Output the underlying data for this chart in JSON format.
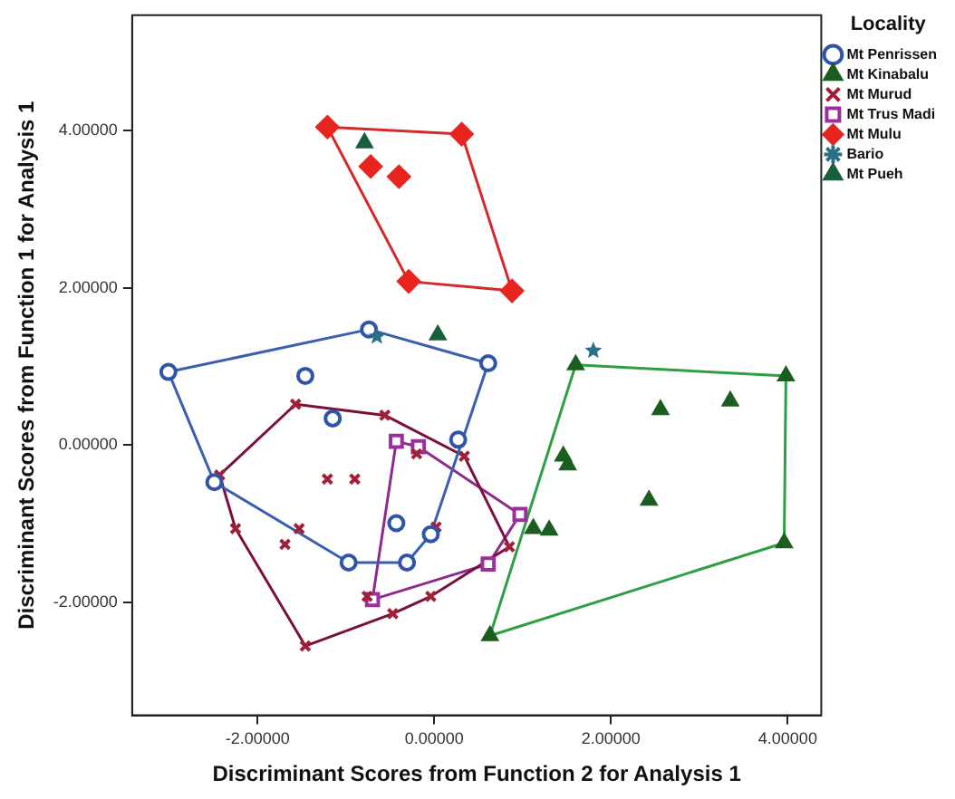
{
  "chart_data": {
    "type": "scatter",
    "xlabel": "Discriminant Scores from Function 2 for Analysis 1",
    "ylabel": "Discriminant Scores from Function 1 for Analysis 1",
    "legend_title": "Locality",
    "legend": "right",
    "grid": false,
    "xlim": [
      -3.42,
      4.38
    ],
    "xticks": [
      {
        "value": -2,
        "label": "-2.00000"
      },
      {
        "value": 0,
        "label": "0.00000"
      },
      {
        "value": 2,
        "label": "2.00000"
      },
      {
        "value": 4,
        "label": "4.00000"
      }
    ],
    "ylim": [
      -3.43,
      5.46
    ],
    "yticks": [
      {
        "value": -2,
        "label": "-2.00000"
      },
      {
        "value": 0,
        "label": "0.00000"
      },
      {
        "value": 2,
        "label": "2.00000"
      },
      {
        "value": 4,
        "label": "4.00000"
      }
    ],
    "series": [
      {
        "name": "Mt Penrissen",
        "color": "#2f55a8",
        "marker": "circle",
        "x": [
          -3.01,
          -0.74,
          0.61,
          -1.46,
          -1.15,
          -2.49,
          0.27,
          -0.43,
          -0.04,
          -0.97,
          -0.31
        ],
        "values": [
          0.93,
          1.47,
          1.04,
          0.88,
          0.34,
          -0.47,
          0.07,
          -0.99,
          -1.13,
          -1.49,
          -1.49
        ]
      },
      {
        "name": "Mt Kinabalu",
        "color": "#1b5e20",
        "marker": "triangle",
        "x": [
          1.6,
          3.98,
          2.56,
          3.35,
          1.46,
          1.51,
          2.43,
          1.12,
          1.3,
          3.96,
          0.63
        ],
        "values": [
          1.02,
          0.88,
          0.45,
          0.56,
          -0.14,
          -0.25,
          -0.7,
          -1.06,
          -1.08,
          -1.24,
          -2.42
        ]
      },
      {
        "name": "Mt Murud",
        "color": "#a0203a",
        "marker": "cross",
        "x": [
          -1.57,
          -0.56,
          -2.43,
          -1.21,
          -0.9,
          0.34,
          -0.2,
          -2.25,
          -1.53,
          -1.69,
          0.02,
          0.85,
          -0.04,
          -0.47,
          -1.46,
          -0.76
        ],
        "values": [
          0.52,
          0.38,
          -0.38,
          -0.43,
          -0.43,
          -0.14,
          -0.11,
          -1.06,
          -1.06,
          -1.26,
          -1.04,
          -1.29,
          -1.92,
          -2.14,
          -2.55,
          -1.92
        ]
      },
      {
        "name": "Mt Trus Madi",
        "color": "#9b2f9b",
        "marker": "square",
        "x": [
          -0.43,
          -0.18,
          0.97,
          0.61,
          -0.7
        ],
        "values": [
          0.05,
          -0.02,
          -0.88,
          -1.51,
          -1.96
        ]
      },
      {
        "name": "Mt Mulu",
        "color": "#e8241e",
        "marker": "diamond",
        "x": [
          -1.21,
          0.31,
          -0.72,
          -0.4,
          -0.29,
          0.88
        ],
        "values": [
          4.04,
          3.95,
          3.54,
          3.41,
          2.08,
          1.96
        ]
      },
      {
        "name": "Bario",
        "color": "#2a6f8a",
        "marker": "star",
        "x": [
          -0.65,
          1.8
        ],
        "values": [
          1.38,
          1.2
        ]
      },
      {
        "name": "Mt Pueh",
        "color": "#1b5e3b",
        "marker": "triangle",
        "x": [
          -0.79,
          0.04
        ],
        "values": [
          3.84,
          1.4
        ]
      },
      {
        "type": "line",
        "color": "#3a5fae",
        "marker": "none",
        "x": [
          -3.01,
          -0.74,
          0.61
        ],
        "values": [
          0.93,
          1.47,
          1.04
        ]
      },
      {
        "type": "line",
        "color": "#3a5fae",
        "marker": "none",
        "x": [
          -3.01,
          -2.49,
          -0.97,
          -0.31,
          -0.04,
          0.61
        ],
        "values": [
          0.93,
          -0.47,
          -1.49,
          -1.49,
          -1.13,
          1.04
        ]
      },
      {
        "type": "line",
        "color": "#7a1040",
        "marker": "none",
        "x": [
          -2.43,
          -1.57,
          -0.56,
          0.34,
          0.85
        ],
        "values": [
          -0.38,
          0.52,
          0.38,
          -0.14,
          -1.29
        ]
      },
      {
        "type": "line",
        "color": "#7a1040",
        "marker": "none",
        "x": [
          -2.43,
          -2.25,
          -1.46,
          -0.47,
          -0.04,
          0.85
        ],
        "values": [
          -0.38,
          -1.06,
          -2.55,
          -2.14,
          -1.92,
          -1.29
        ]
      },
      {
        "type": "line",
        "color": "#8e2a8e",
        "marker": "none",
        "x": [
          -0.7,
          -0.43,
          -0.18,
          0.97
        ],
        "values": [
          -1.96,
          0.05,
          -0.02,
          -0.88
        ]
      },
      {
        "type": "line",
        "color": "#8e2a8e",
        "marker": "none",
        "x": [
          -0.7,
          0.61,
          0.97
        ],
        "values": [
          -1.96,
          -1.51,
          -0.88
        ]
      },
      {
        "type": "line",
        "color": "#d42a2a",
        "marker": "none",
        "x": [
          -1.21,
          0.31,
          0.88
        ],
        "values": [
          4.04,
          3.95,
          1.96
        ]
      },
      {
        "type": "line",
        "color": "#d42a2a",
        "marker": "none",
        "x": [
          -1.21,
          -0.29,
          0.88
        ],
        "values": [
          4.04,
          2.08,
          1.96
        ]
      },
      {
        "type": "line",
        "color": "#2ea043",
        "marker": "none",
        "x": [
          0.63,
          1.6,
          3.98
        ],
        "values": [
          -2.42,
          1.02,
          0.88
        ]
      },
      {
        "type": "line",
        "color": "#2ea043",
        "marker": "none",
        "x": [
          0.63,
          3.96,
          3.98
        ],
        "values": [
          -2.42,
          -1.24,
          0.88
        ]
      }
    ]
  }
}
